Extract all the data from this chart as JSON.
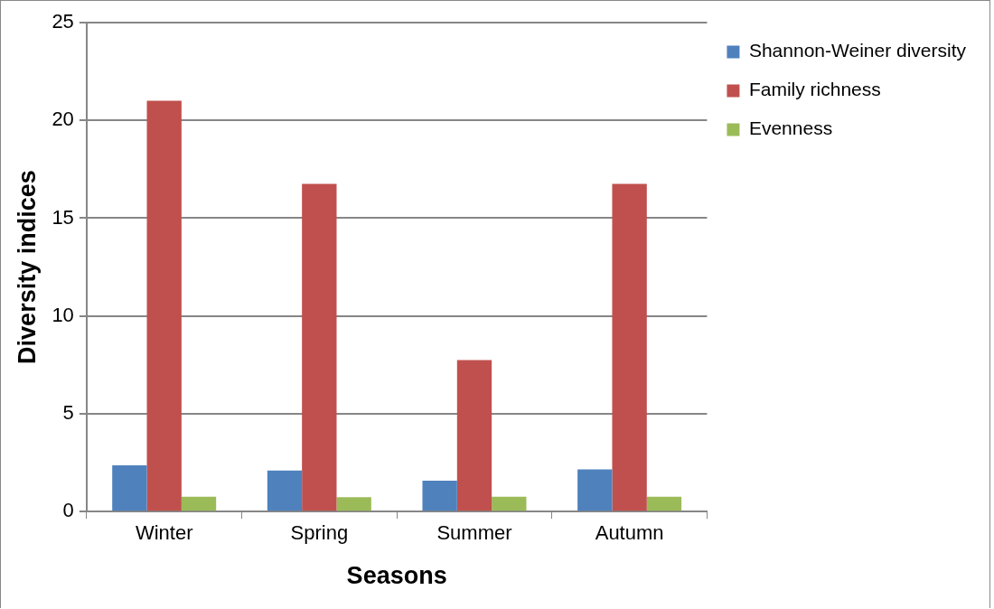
{
  "chart_data": {
    "type": "bar",
    "xlabel": "Seasons",
    "ylabel": "Diversity indices",
    "categories": [
      "Winter",
      "Spring",
      "Summer",
      "Autumn"
    ],
    "series": [
      {
        "name": "Shannon-Weiner diversity",
        "color": "#4f81bd",
        "values": [
          2.37,
          2.1,
          1.58,
          2.16
        ]
      },
      {
        "name": "Family richness",
        "color": "#c0504d",
        "values": [
          21,
          16.75,
          7.75,
          16.75
        ]
      },
      {
        "name": "Evenness",
        "color": "#9bbb59",
        "values": [
          0.76,
          0.74,
          0.76,
          0.76
        ]
      }
    ],
    "ylim": [
      0,
      25
    ],
    "yticks": [
      0,
      5,
      10,
      15,
      20,
      25
    ],
    "grid": "y",
    "legend": "top right"
  }
}
